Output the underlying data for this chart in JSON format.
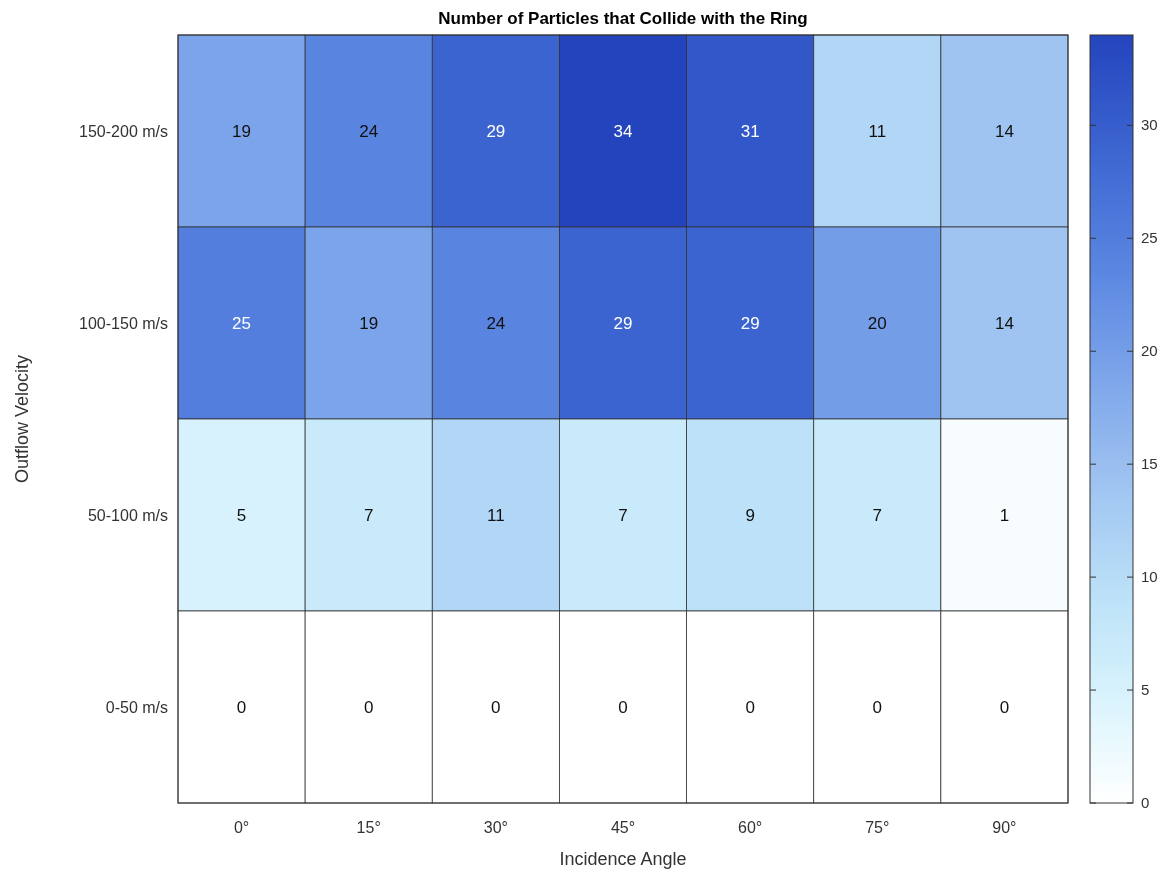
{
  "chart_data": {
    "type": "heatmap",
    "title": "Number of Particles that Collide with the Ring",
    "xlabel": "Incidence Angle",
    "ylabel": "Outflow Velocity",
    "categories": [
      "0°",
      "15°",
      "30°",
      "45°",
      "60°",
      "75°",
      "90°"
    ],
    "y_categories": [
      "150-200 m/s",
      "100-150 m/s",
      "50-100 m/s",
      "0-50 m/s"
    ],
    "cells": [
      [
        19,
        24,
        29,
        34,
        31,
        11,
        14
      ],
      [
        25,
        19,
        24,
        29,
        29,
        20,
        14
      ],
      [
        5,
        7,
        11,
        7,
        9,
        7,
        1
      ],
      [
        0,
        0,
        0,
        0,
        0,
        0,
        0
      ]
    ],
    "data_labels": true,
    "clim": [
      0,
      34
    ],
    "cticks": [
      0,
      5,
      10,
      15,
      20,
      25,
      30
    ]
  }
}
